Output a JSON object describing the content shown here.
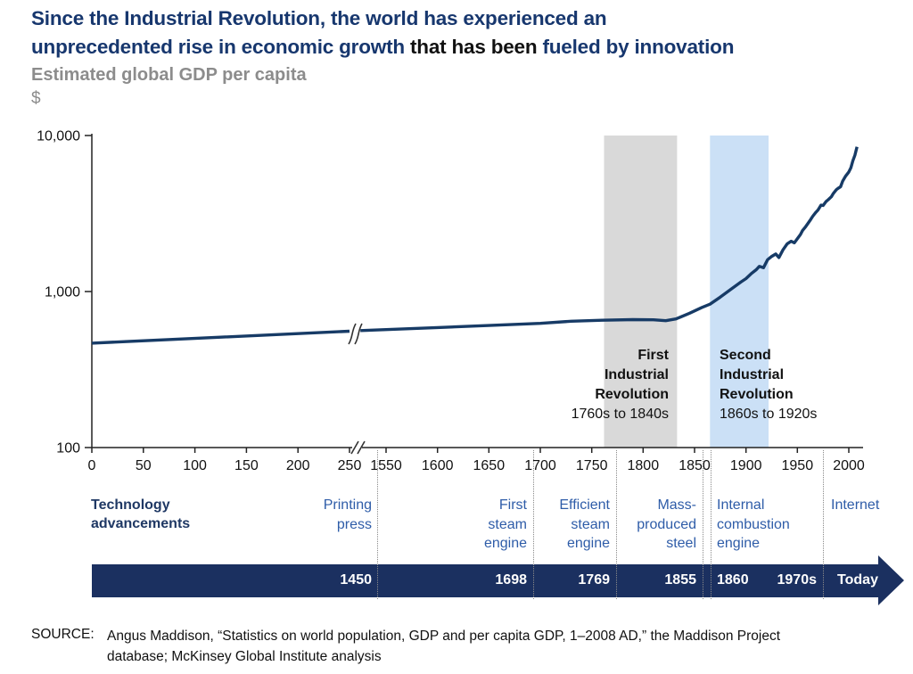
{
  "header": {
    "title_line1": "Since the Industrial Revolution, the world has experienced an",
    "title_line2_part1": "unprecedented rise in economic growth",
    "title_line2_part2": " that has been",
    "title_line2_part3": " fueled by innovation",
    "subtitle": "Estimated global GDP per capita",
    "unit": "$"
  },
  "colors": {
    "title_navy": "#17376E",
    "line_navy": "#173B66",
    "banner_navy": "#1B3060",
    "timeline_label_blue": "#2E5CA8",
    "heading_navy": "#1F3864",
    "gray_band": "#D9D9D9",
    "blue_band": "#CBE0F6",
    "subtitle_gray": "#8C8C8C"
  },
  "chart_data": {
    "type": "line",
    "title": "Estimated global GDP per capita",
    "ylabel": "$",
    "y_scale": "log",
    "ylim": [
      100,
      10000
    ],
    "y_ticks": [
      10000,
      1000,
      100
    ],
    "x_axis_break_between": [
      250,
      1550
    ],
    "x_ticks_left": [
      0,
      50,
      100,
      150,
      200,
      250
    ],
    "x_ticks_right": [
      1550,
      1600,
      1650,
      1700,
      1750,
      1800,
      1850,
      1900,
      1950,
      2000
    ],
    "line_color": "#173B66",
    "series": [
      {
        "name": "Estimated global GDP per capita, years 0-250",
        "points": [
          [
            0,
            467
          ],
          [
            125,
            510
          ],
          [
            250,
            557
          ]
        ]
      },
      {
        "name": "Estimated global GDP per capita, 1525-2008",
        "points": [
          [
            1525,
            562
          ],
          [
            1550,
            570
          ],
          [
            1600,
            588
          ],
          [
            1650,
            606
          ],
          [
            1700,
            625
          ],
          [
            1730,
            645
          ],
          [
            1760,
            655
          ],
          [
            1790,
            661
          ],
          [
            1810,
            659
          ],
          [
            1822,
            650
          ],
          [
            1832,
            668
          ],
          [
            1845,
            725
          ],
          [
            1857,
            790
          ],
          [
            1865,
            830
          ],
          [
            1875,
            920
          ],
          [
            1885,
            1030
          ],
          [
            1895,
            1150
          ],
          [
            1900,
            1210
          ],
          [
            1905,
            1300
          ],
          [
            1910,
            1380
          ],
          [
            1913,
            1450
          ],
          [
            1917,
            1420
          ],
          [
            1921,
            1600
          ],
          [
            1925,
            1680
          ],
          [
            1929,
            1740
          ],
          [
            1932,
            1650
          ],
          [
            1936,
            1850
          ],
          [
            1940,
            2020
          ],
          [
            1944,
            2100
          ],
          [
            1947,
            2050
          ],
          [
            1950,
            2180
          ],
          [
            1953,
            2320
          ],
          [
            1955,
            2460
          ],
          [
            1958,
            2600
          ],
          [
            1960,
            2720
          ],
          [
            1963,
            2900
          ],
          [
            1965,
            3040
          ],
          [
            1968,
            3220
          ],
          [
            1970,
            3330
          ],
          [
            1973,
            3580
          ],
          [
            1975,
            3560
          ],
          [
            1978,
            3780
          ],
          [
            1980,
            3880
          ],
          [
            1983,
            4050
          ],
          [
            1985,
            4260
          ],
          [
            1988,
            4500
          ],
          [
            1990,
            4610
          ],
          [
            1992,
            4700
          ],
          [
            1994,
            5100
          ],
          [
            1997,
            5500
          ],
          [
            2000,
            5840
          ],
          [
            2002,
            6200
          ],
          [
            2004,
            6900
          ],
          [
            2006,
            7500
          ],
          [
            2008,
            8460
          ]
        ]
      }
    ],
    "bands": [
      {
        "name_lines": [
          "First",
          "Industrial",
          "Revolution"
        ],
        "range": "1760s to 1840s",
        "from_year": 1762,
        "to_year": 1833,
        "color": "#D9D9D9"
      },
      {
        "name_lines": [
          "Second",
          "Industrial",
          "Revolution"
        ],
        "range": "1860s to 1920s",
        "from_year": 1865,
        "to_year": 1922,
        "color": "#CBE0F6"
      }
    ]
  },
  "timeline": {
    "heading": "Technology advancements",
    "events": [
      {
        "label": "Printing press",
        "year": "1450"
      },
      {
        "label": "First steam engine",
        "year": "1698"
      },
      {
        "label": "Efficient steam engine",
        "year": "1769"
      },
      {
        "label": "Mass-produced steel",
        "year": "1855"
      },
      {
        "label": "Internal combustion engine",
        "year": "1860"
      },
      {
        "label": "",
        "year": "1970s"
      },
      {
        "label": "Internet",
        "year": "Today"
      }
    ]
  },
  "source": {
    "label": "SOURCE:",
    "line1": "Angus Maddison, “Statistics on world population, GDP and per capita GDP, 1–2008 AD,” the Maddison Project",
    "line2": "database; McKinsey Global Institute analysis"
  }
}
